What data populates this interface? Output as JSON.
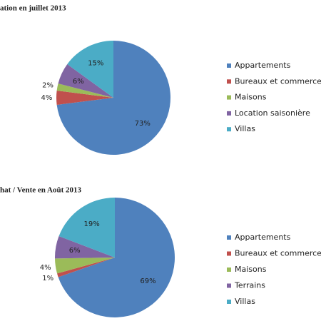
{
  "chart_data": [
    {
      "type": "pie",
      "title": "ation en juillet 2013",
      "categories": [
        "Appartements",
        "Bureaux et commerces",
        "Maisons",
        "Location saisonière",
        "Villas"
      ],
      "values": [
        73,
        4,
        2,
        6,
        15
      ],
      "value_labels": [
        "73%",
        "4%",
        "2%",
        "6%",
        "15%"
      ],
      "colors": [
        "#4f81bd",
        "#c0504d",
        "#9bbb59",
        "#8064a2",
        "#4bacc6"
      ]
    },
    {
      "type": "pie",
      "title": "hat / Vente en Août 2013",
      "categories": [
        "Appartements",
        "Bureaux et commerces",
        "Maisons",
        "Terrains",
        "Villas"
      ],
      "values": [
        69,
        1,
        4,
        6,
        19
      ],
      "value_labels": [
        "69%",
        "1%",
        "4%",
        "6%",
        "19%"
      ],
      "colors": [
        "#4f81bd",
        "#c0504d",
        "#9bbb59",
        "#8064a2",
        "#4bacc6"
      ]
    }
  ]
}
